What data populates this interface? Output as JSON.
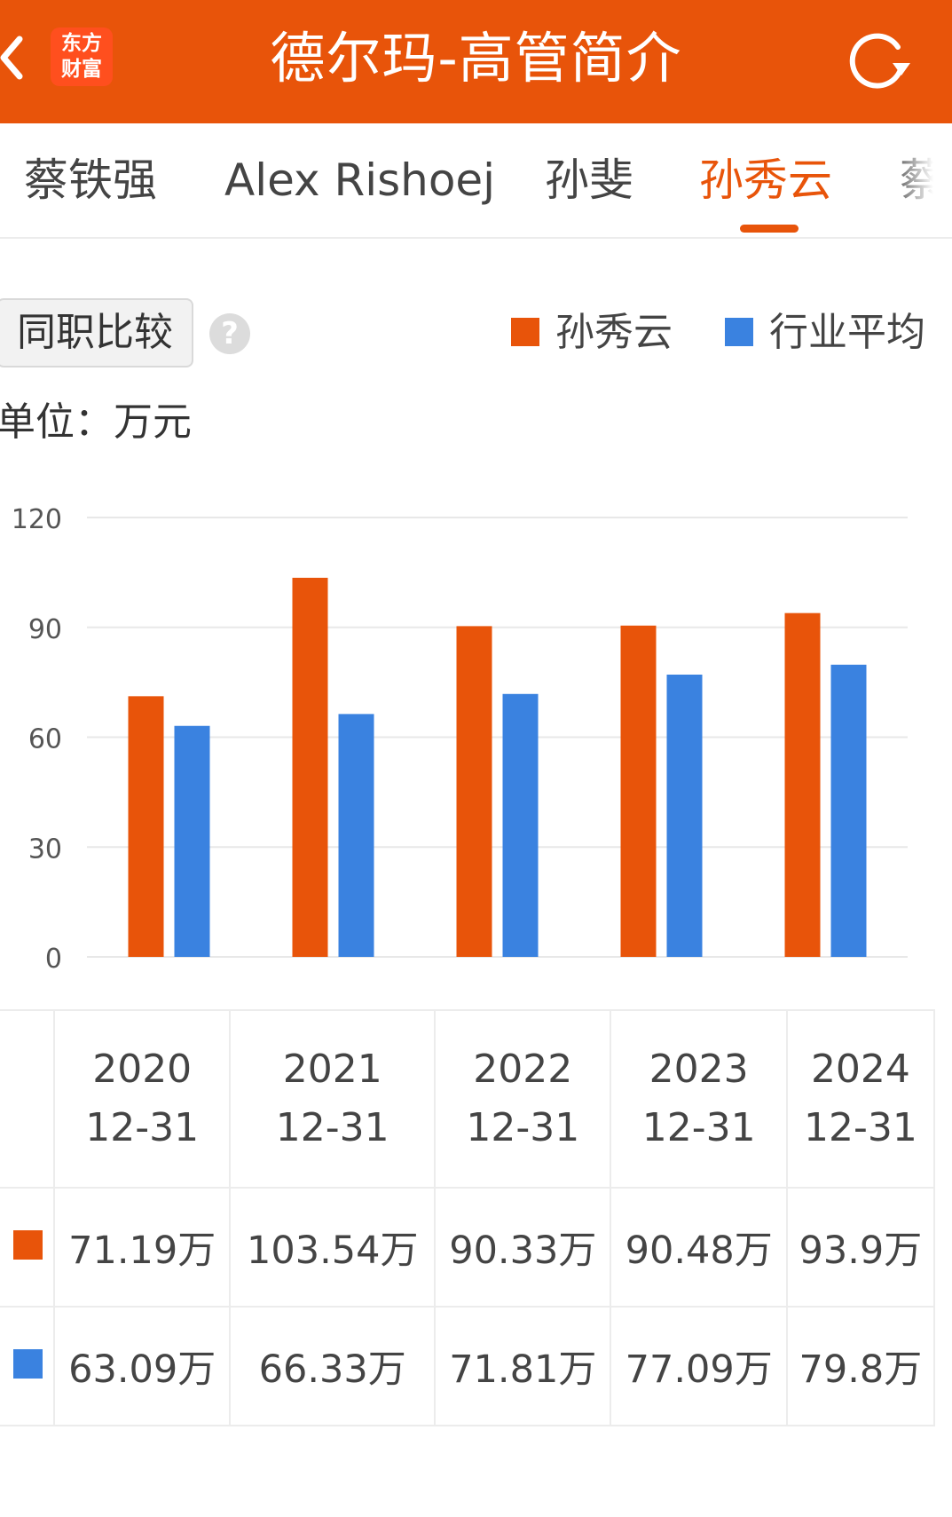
{
  "header": {
    "title": "德尔玛-高管简介",
    "logo_line1": "东方",
    "logo_line2": "财富"
  },
  "tabs": [
    {
      "label": "蔡铁强",
      "active": false
    },
    {
      "label": "Alex Rishoej",
      "active": false
    },
    {
      "label": "孙斐",
      "active": false
    },
    {
      "label": "孙秀云",
      "active": true
    },
    {
      "label": "蔡",
      "active": false
    }
  ],
  "controls": {
    "compare_label": "同职比较",
    "help_symbol": "?",
    "unit_label": "单位：万元"
  },
  "colors": {
    "accent": "#e8540a",
    "series_person": "#e8540a",
    "series_industry": "#3a82e0"
  },
  "icons": {
    "back": "chevron-left-icon",
    "refresh": "refresh-icon",
    "help": "question-icon"
  },
  "chart_data": {
    "type": "bar",
    "categories": [
      "2020-12-31",
      "2021-12-31",
      "2022-12-31",
      "2023-12-31",
      "2024-12-31"
    ],
    "series": [
      {
        "name": "孙秀云",
        "values": [
          71.19,
          103.54,
          90.33,
          90.48,
          93.9
        ]
      },
      {
        "name": "行业平均",
        "values": [
          63.09,
          66.33,
          71.81,
          77.09,
          79.8
        ]
      }
    ],
    "ylim": [
      0,
      120
    ],
    "yticks": [
      "0",
      "30",
      "60",
      "90",
      "120"
    ],
    "grid": true,
    "legend": "top-right"
  },
  "table": {
    "headers": [
      {
        "year": "2020",
        "date": "12-31"
      },
      {
        "year": "2021",
        "date": "12-31"
      },
      {
        "year": "2022",
        "date": "12-31"
      },
      {
        "year": "2023",
        "date": "12-31"
      },
      {
        "year": "2024",
        "date": "12-31"
      }
    ],
    "rows": [
      {
        "series": "孙秀云",
        "values": [
          "71.19万",
          "103.54万",
          "90.33万",
          "90.48万",
          "93.9万"
        ]
      },
      {
        "series": "行业平均",
        "values": [
          "63.09万",
          "66.33万",
          "71.81万",
          "77.09万",
          "79.8万"
        ]
      }
    ]
  }
}
